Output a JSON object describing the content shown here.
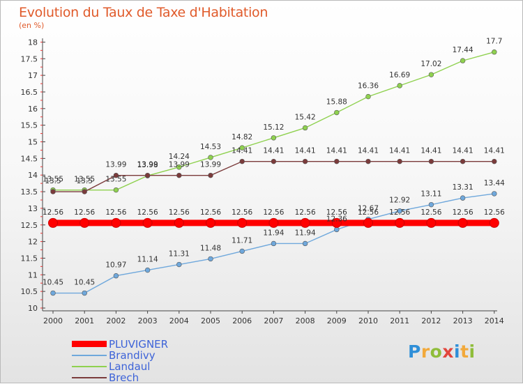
{
  "chart_data": {
    "type": "line",
    "title": "Evolution du Taux de Taxe d'Habitation",
    "subtitle": "(en %)",
    "x": [
      "2000",
      "2001",
      "2002",
      "2003",
      "2004",
      "2005",
      "2006",
      "2007",
      "2008",
      "2009",
      "2010",
      "2011",
      "2012",
      "2013",
      "2014"
    ],
    "ylim": [
      10,
      18
    ],
    "yticks": [
      "10",
      "10.5",
      "11",
      "11.5",
      "12",
      "12.5",
      "13",
      "13.5",
      "14",
      "14.5",
      "15",
      "15.5",
      "16",
      "16.5",
      "17",
      "17.5",
      "18"
    ],
    "grid": false,
    "legend_position": "bottom-left",
    "series": [
      {
        "name": "PLUVIGNER",
        "color": "#ff0000",
        "values": [
          12.56,
          12.56,
          12.56,
          12.56,
          12.56,
          12.56,
          12.56,
          12.56,
          12.56,
          12.56,
          12.56,
          12.56,
          12.56,
          12.56,
          12.56
        ],
        "labels": [
          "12.56",
          "12.56",
          "12.56",
          "12.56",
          "12.56",
          "12.56",
          "12.56",
          "12.56",
          "12.56",
          "12.56",
          "12.56",
          "12.56",
          "12.56",
          "12.56",
          "12.56"
        ]
      },
      {
        "name": "Brandivy",
        "color": "#6fa8dc",
        "values": [
          10.45,
          10.45,
          10.97,
          11.14,
          11.31,
          11.48,
          11.71,
          11.94,
          11.94,
          12.36,
          12.67,
          12.92,
          13.11,
          13.31,
          13.44
        ],
        "labels": [
          "10.45",
          "10.45",
          "10.97",
          "11.14",
          "11.31",
          "11.48",
          "11.71",
          "11.94",
          "11.94",
          "12.36",
          "12.67",
          "12.92",
          "13.11",
          "13.31",
          "13.44"
        ]
      },
      {
        "name": "Landaul",
        "color": "#8fd14f",
        "values": [
          13.55,
          13.55,
          13.55,
          13.98,
          14.24,
          14.53,
          14.82,
          15.12,
          15.42,
          15.88,
          16.36,
          16.69,
          17.02,
          17.44,
          17.7
        ],
        "labels": [
          "13.55",
          "13.55",
          "13.55",
          "13.98",
          "14.24",
          "14.53",
          "14.82",
          "15.12",
          "15.42",
          "15.88",
          "16.36",
          "16.69",
          "17.02",
          "17.44",
          "17.7"
        ]
      },
      {
        "name": "Brech",
        "color": "#7b3b3b",
        "values": [
          13.5,
          13.5,
          13.99,
          13.99,
          13.99,
          13.99,
          14.41,
          14.41,
          14.41,
          14.41,
          14.41,
          14.41,
          14.41,
          14.41,
          14.41
        ],
        "labels": [
          "13.5",
          "13.5",
          "13.99",
          "13.99",
          "13.99",
          "13.99",
          "14.41",
          "14.41",
          "14.41",
          "14.41",
          "14.41",
          "14.41",
          "14.41",
          "14.41",
          "14.41"
        ]
      }
    ]
  },
  "logo": {
    "letters": [
      "P",
      "r",
      "o",
      "x",
      "i",
      "t",
      "i"
    ],
    "colors": [
      "#2f8fd8",
      "#f2a93b",
      "#8fbd3a",
      "#e2453c",
      "#2f8fd8",
      "#f2a93b",
      "#8fbd3a"
    ]
  }
}
